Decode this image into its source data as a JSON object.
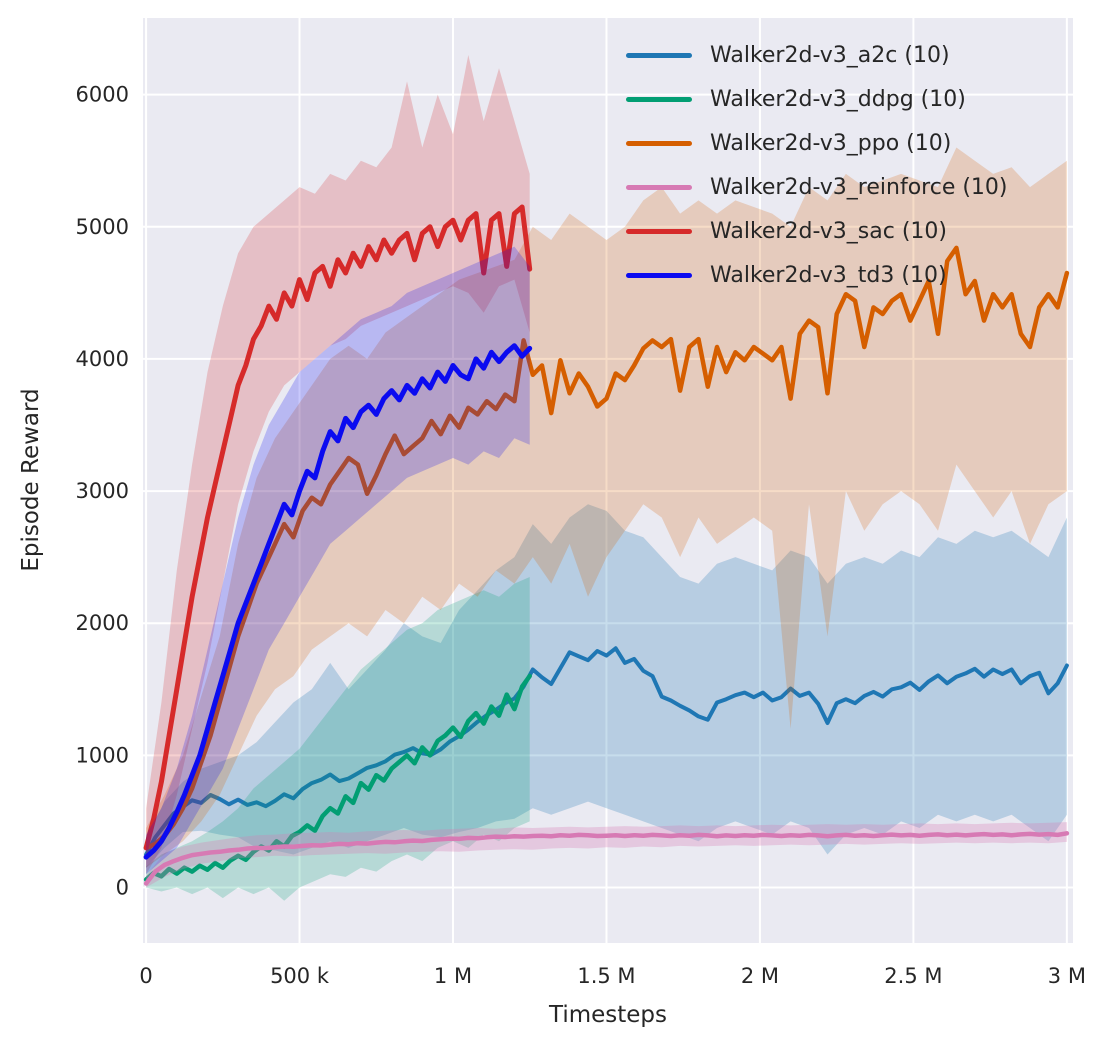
{
  "figure": {
    "background": "#ffffff",
    "plot_background": "#eaeaf2",
    "grid_color": "#ffffff",
    "text_color": "#262626"
  },
  "chart_data": {
    "type": "line",
    "title": "",
    "xlabel": "Timesteps",
    "ylabel": "Episode Reward",
    "grid": true,
    "legend_position": "upper right",
    "xlim": [
      -10000,
      3020000
    ],
    "ylim": [
      -420,
      6580
    ],
    "x_ticks": [
      {
        "v": 0,
        "label": "0"
      },
      {
        "v": 500000,
        "label": "500 k"
      },
      {
        "v": 1000000,
        "label": "1 M"
      },
      {
        "v": 1500000,
        "label": "1.5 M"
      },
      {
        "v": 2000000,
        "label": "2 M"
      },
      {
        "v": 2500000,
        "label": "2.5 M"
      },
      {
        "v": 3000000,
        "label": "3 M"
      }
    ],
    "y_ticks": [
      {
        "v": 0,
        "label": "0"
      },
      {
        "v": 1000,
        "label": "1000"
      },
      {
        "v": 2000,
        "label": "2000"
      },
      {
        "v": 3000,
        "label": "3000"
      },
      {
        "v": 4000,
        "label": "4000"
      },
      {
        "v": 5000,
        "label": "5000"
      },
      {
        "v": 6000,
        "label": "6000"
      }
    ],
    "series": [
      {
        "key": "a2c",
        "name": "Walker2d-v3_a2c (10)",
        "color": "#1f77b4",
        "band_alpha": 0.25,
        "line_width": 4,
        "x_start": 0,
        "x_step": 30000,
        "band_step": 2,
        "mean": [
          250,
          380,
          470,
          560,
          610,
          660,
          640,
          700,
          670,
          630,
          665,
          625,
          645,
          615,
          655,
          705,
          675,
          745,
          790,
          815,
          855,
          805,
          825,
          865,
          905,
          925,
          955,
          1005,
          1025,
          1055,
          1015,
          1005,
          1045,
          1105,
          1145,
          1195,
          1255,
          1305,
          1345,
          1395,
          1430,
          1520,
          1650,
          1590,
          1540,
          1660,
          1780,
          1750,
          1720,
          1790,
          1755,
          1810,
          1700,
          1730,
          1640,
          1600,
          1445,
          1415,
          1375,
          1340,
          1295,
          1270,
          1400,
          1425,
          1455,
          1475,
          1440,
          1475,
          1415,
          1440,
          1505,
          1450,
          1475,
          1390,
          1245,
          1395,
          1425,
          1395,
          1450,
          1480,
          1445,
          1500,
          1515,
          1550,
          1495,
          1560,
          1605,
          1545,
          1595,
          1620,
          1655,
          1595,
          1650,
          1615,
          1650,
          1545,
          1600,
          1625,
          1470,
          1545,
          1680
        ],
        "lo": [
          150,
          300,
          420,
          430,
          400,
          380,
          300,
          280,
          250,
          300,
          350,
          300,
          350,
          400,
          450,
          400,
          380,
          420,
          450,
          500,
          520,
          600,
          550,
          600,
          650,
          600,
          550,
          500,
          450,
          400,
          350,
          450,
          500,
          450,
          400,
          500,
          450,
          250,
          400,
          450,
          400,
          500,
          450,
          550,
          500,
          550,
          500,
          550,
          450,
          350,
          550
        ],
        "hi": [
          380,
          650,
          800,
          900,
          950,
          1000,
          1100,
          1250,
          1400,
          1500,
          1700,
          1500,
          1650,
          1800,
          2000,
          1900,
          1850,
          2100,
          2250,
          2400,
          2500,
          2750,
          2600,
          2800,
          2900,
          2850,
          2700,
          2650,
          2500,
          2350,
          2300,
          2450,
          2500,
          2450,
          2400,
          2550,
          2500,
          2300,
          2450,
          2500,
          2450,
          2550,
          2500,
          2650,
          2600,
          2700,
          2650,
          2700,
          2600,
          2500,
          2800
        ]
      },
      {
        "key": "ddpg",
        "name": "Walker2d-v3_ddpg (10)",
        "color": "#029e73",
        "band_alpha": 0.22,
        "line_width": 4.5,
        "x_start": 0,
        "x_step": 25000,
        "band_step": 2,
        "mean": [
          60,
          110,
          85,
          140,
          105,
          150,
          120,
          165,
          135,
          185,
          150,
          205,
          240,
          210,
          270,
          310,
          280,
          350,
          310,
          390,
          420,
          470,
          430,
          540,
          600,
          560,
          690,
          640,
          790,
          740,
          850,
          810,
          900,
          950,
          1000,
          940,
          1060,
          1000,
          1110,
          1150,
          1210,
          1140,
          1260,
          1320,
          1240,
          1370,
          1300,
          1460,
          1350,
          1520,
          1600
        ],
        "lo": [
          0,
          -30,
          0,
          -50,
          0,
          -80,
          0,
          -50,
          0,
          -100,
          0,
          50,
          100,
          80,
          150,
          120,
          200,
          250,
          200,
          300,
          350,
          300,
          400,
          350,
          450,
          500
        ],
        "hi": [
          160,
          250,
          300,
          350,
          420,
          500,
          600,
          750,
          850,
          950,
          1050,
          1200,
          1350,
          1500,
          1650,
          1750,
          1850,
          1950,
          2000,
          2100,
          2150,
          2200,
          2250,
          2200,
          2300,
          2350
        ]
      },
      {
        "key": "ppo",
        "name": "Walker2d-v3_ppo (10)",
        "color": "#d55e00",
        "band_alpha": 0.22,
        "line_width": 4.5,
        "x_start": 0,
        "x_step": 30000,
        "band_step": 2,
        "mean": [
          300,
          330,
          390,
          480,
          600,
          750,
          950,
          1150,
          1400,
          1650,
          1900,
          2100,
          2300,
          2450,
          2600,
          2750,
          2650,
          2850,
          2950,
          2900,
          3050,
          3150,
          3250,
          3200,
          2980,
          3120,
          3280,
          3420,
          3280,
          3340,
          3400,
          3530,
          3430,
          3570,
          3480,
          3630,
          3580,
          3680,
          3620,
          3730,
          3680,
          4140,
          3880,
          3950,
          3590,
          3990,
          3740,
          3890,
          3790,
          3640,
          3700,
          3890,
          3840,
          3950,
          4080,
          4140,
          4090,
          4150,
          3760,
          4090,
          4150,
          3790,
          4090,
          3900,
          4050,
          3990,
          4090,
          4040,
          3990,
          4090,
          3700,
          4190,
          4290,
          4240,
          3740,
          4340,
          4490,
          4440,
          4090,
          4390,
          4340,
          4440,
          4490,
          4290,
          4440,
          4590,
          4190,
          4740,
          4840,
          4490,
          4590,
          4290,
          4490,
          4390,
          4490,
          4190,
          4090,
          4390,
          4490,
          4390,
          4650
        ],
        "lo": [
          150,
          250,
          350,
          500,
          700,
          1000,
          1300,
          1500,
          1600,
          1800,
          1900,
          2000,
          1900,
          2100,
          2000,
          2200,
          2100,
          2300,
          2200,
          2400,
          2300,
          2500,
          2300,
          2600,
          2200,
          2500,
          2700,
          2900,
          2800,
          2500,
          2800,
          2600,
          2700,
          2800,
          2700,
          1200,
          2900,
          1900,
          3000,
          2700,
          2900,
          3000,
          2900,
          2700,
          3200,
          3000,
          2800,
          3000,
          2600,
          2900,
          3000
        ],
        "hi": [
          450,
          700,
          1000,
          1450,
          1900,
          2600,
          3100,
          3400,
          3600,
          3800,
          4000,
          4100,
          4000,
          4200,
          4300,
          4400,
          4500,
          4600,
          4650,
          4700,
          4750,
          5000,
          4900,
          5100,
          5000,
          4900,
          5000,
          5200,
          5300,
          5100,
          5200,
          5100,
          5200,
          5150,
          5100,
          5000,
          5300,
          5200,
          5400,
          5300,
          5350,
          5400,
          5350,
          5300,
          5600,
          5500,
          5400,
          5450,
          5300,
          5400,
          5500
        ]
      },
      {
        "key": "reinforce",
        "name": "Walker2d-v3_reinforce (10)",
        "color": "#d77ab4",
        "band_alpha": 0.3,
        "line_width": 4.5,
        "x_start": 0,
        "x_step": 30000,
        "band_step": 2,
        "mean": [
          30,
          120,
          170,
          200,
          225,
          245,
          255,
          265,
          270,
          280,
          285,
          295,
          300,
          298,
          305,
          310,
          308,
          315,
          320,
          318,
          325,
          330,
          328,
          335,
          332,
          340,
          345,
          342,
          350,
          355,
          352,
          360,
          365,
          370,
          368,
          375,
          372,
          380,
          385,
          382,
          388,
          385,
          390,
          392,
          388,
          395,
          392,
          398,
          395,
          390,
          392,
          395,
          390,
          396,
          392,
          398,
          394,
          390,
          396,
          392,
          398,
          394,
          388,
          394,
          390,
          396,
          392,
          398,
          394,
          390,
          396,
          392,
          398,
          394,
          388,
          394,
          398,
          392,
          396,
          390,
          396,
          400,
          394,
          398,
          392,
          398,
          402,
          396,
          400,
          394,
          400,
          404,
          398,
          402,
          396,
          402,
          406,
          400,
          404,
          398,
          410
        ],
        "lo": [
          0,
          80,
          140,
          180,
          200,
          220,
          230,
          240,
          235,
          245,
          250,
          255,
          260,
          255,
          265,
          270,
          275,
          270,
          280,
          285,
          290,
          285,
          295,
          300,
          295,
          305,
          300,
          310,
          305,
          315,
          310,
          315,
          320,
          315,
          320,
          325,
          320,
          325,
          330,
          325,
          330,
          335,
          330,
          335,
          340,
          335,
          340,
          335,
          340,
          335,
          345
        ],
        "hi": [
          90,
          260,
          310,
          340,
          360,
          380,
          395,
          400,
          410,
          415,
          420,
          415,
          425,
          430,
          435,
          430,
          440,
          445,
          450,
          445,
          455,
          450,
          455,
          460,
          455,
          460,
          465,
          460,
          465,
          470,
          465,
          470,
          465,
          470,
          475,
          470,
          475,
          480,
          475,
          480,
          475,
          480,
          485,
          480,
          485,
          480,
          485,
          490,
          485,
          490,
          495
        ]
      },
      {
        "key": "sac",
        "name": "Walker2d-v3_sac (10)",
        "color": "#d62a2a",
        "band_alpha": 0.22,
        "line_width": 5,
        "x_start": 0,
        "x_step": 25000,
        "band_step": 2,
        "mean": [
          300,
          520,
          800,
          1150,
          1500,
          1850,
          2200,
          2500,
          2800,
          3050,
          3300,
          3550,
          3800,
          3950,
          4150,
          4250,
          4400,
          4300,
          4500,
          4400,
          4600,
          4450,
          4650,
          4700,
          4550,
          4750,
          4650,
          4800,
          4700,
          4850,
          4750,
          4900,
          4800,
          4900,
          4950,
          4750,
          4950,
          5000,
          4850,
          5000,
          5050,
          4900,
          5050,
          5100,
          4650,
          5050,
          5100,
          4700,
          5100,
          5150,
          4680
        ],
        "lo": [
          100,
          300,
          700,
          1200,
          1700,
          2300,
          2900,
          3300,
          3600,
          3800,
          3900,
          4000,
          4100,
          4150,
          4250,
          4300,
          4350,
          4400,
          4450,
          4500,
          4550,
          4500,
          4350,
          4550,
          4600,
          4200
        ],
        "hi": [
          600,
          1400,
          2400,
          3200,
          3900,
          4400,
          4800,
          5000,
          5100,
          5200,
          5300,
          5250,
          5400,
          5350,
          5500,
          5450,
          5600,
          6100,
          5600,
          6000,
          5700,
          6300,
          5800,
          6200,
          5800,
          5400
        ]
      },
      {
        "key": "td3",
        "name": "Walker2d-v3_td3 (10)",
        "color": "#0b0bf0",
        "band_alpha": 0.22,
        "line_width": 5,
        "x_start": 0,
        "x_step": 25000,
        "band_step": 2,
        "mean": [
          230,
          280,
          350,
          450,
          570,
          700,
          850,
          1000,
          1200,
          1400,
          1600,
          1800,
          2000,
          2150,
          2300,
          2450,
          2600,
          2750,
          2900,
          2820,
          3000,
          3150,
          3100,
          3300,
          3450,
          3380,
          3550,
          3480,
          3600,
          3650,
          3580,
          3700,
          3760,
          3690,
          3800,
          3740,
          3850,
          3780,
          3900,
          3830,
          3950,
          3880,
          3850,
          4000,
          3930,
          4050,
          3980,
          4050,
          4100,
          4020,
          4080
        ],
        "lo": [
          100,
          200,
          300,
          500,
          700,
          900,
          1200,
          1500,
          1800,
          2000,
          2200,
          2400,
          2600,
          2700,
          2800,
          2900,
          3000,
          3100,
          3150,
          3200,
          3250,
          3200,
          3300,
          3250,
          3400,
          3350
        ],
        "hi": [
          400,
          600,
          900,
          1300,
          1800,
          2300,
          2800,
          3200,
          3500,
          3700,
          3900,
          4000,
          4100,
          4200,
          4300,
          4350,
          4400,
          4500,
          4550,
          4600,
          4650,
          4700,
          4750,
          4800,
          4850,
          4700
        ]
      }
    ]
  }
}
